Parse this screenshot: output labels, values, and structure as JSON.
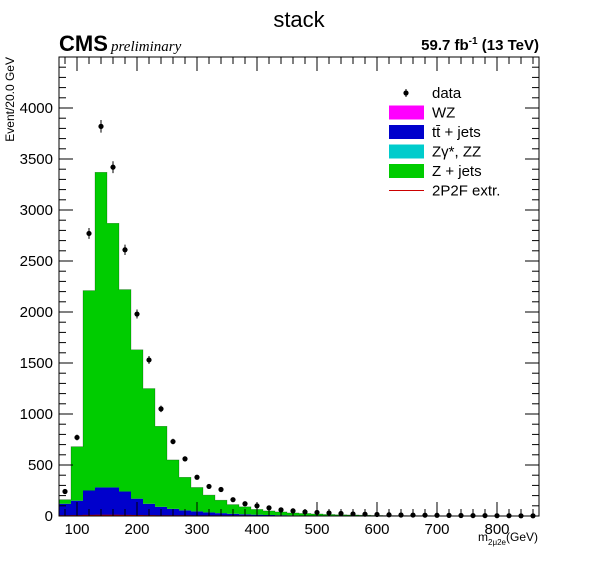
{
  "chart_data": {
    "type": "stacked-histogram",
    "title": "stack",
    "experiment": "CMS",
    "status": "preliminary",
    "lumi_text": "59.7 fb",
    "lumi_exp": "-1",
    "energy_text": "(13 TeV)",
    "ylabel": "Event/20.0 GeV",
    "xlabel_main": "m",
    "xlabel_sub": "2μ2e",
    "xlabel_unit": "(GeV)",
    "xlim": [
      70,
      870
    ],
    "ylim": [
      0,
      4500
    ],
    "bin_width": 20,
    "x_ticks": [
      100,
      200,
      300,
      400,
      500,
      600,
      700,
      800
    ],
    "y_ticks": [
      0,
      500,
      1000,
      1500,
      2000,
      2500,
      3000,
      3500,
      4000
    ],
    "legend_position": "top-right",
    "legend": [
      {
        "label": "data",
        "style": "marker",
        "color": "#000000"
      },
      {
        "label": "WZ",
        "style": "fill",
        "color": "#ff00ff"
      },
      {
        "label": "tt̄ + jets",
        "style": "fill",
        "color": "#0000cc"
      },
      {
        "label": "Zγ*, ZZ",
        "style": "fill",
        "color": "#00cccc"
      },
      {
        "label": "Z + jets",
        "style": "fill",
        "color": "#00cc00"
      },
      {
        "label": "2P2F extr.",
        "style": "line",
        "color": "#cc0000"
      }
    ],
    "bin_edges_low": [
      70,
      90,
      110,
      130,
      150,
      170,
      190,
      210,
      230,
      250,
      270,
      290,
      310,
      330,
      350,
      370,
      390,
      410,
      430,
      450,
      470,
      490,
      510,
      530,
      550,
      570,
      590,
      610,
      630,
      650,
      670,
      690,
      710,
      730,
      750,
      770,
      790,
      810,
      830,
      850
    ],
    "series": [
      {
        "name": "tt̄ + jets",
        "color": "#0000cc",
        "values": [
          120,
          150,
          250,
          280,
          280,
          240,
          170,
          120,
          90,
          70,
          55,
          45,
          35,
          28,
          22,
          17,
          13,
          10,
          8,
          6,
          5,
          4,
          3,
          3,
          2,
          2,
          1,
          1,
          1,
          1,
          1,
          0,
          0,
          0,
          0,
          0,
          0,
          0,
          0,
          0
        ]
      },
      {
        "name": "Zγ*, ZZ",
        "color": "#00cccc",
        "values": [
          0,
          0,
          0,
          0,
          0,
          0,
          0,
          0,
          0,
          0,
          0,
          0,
          0,
          0,
          0,
          0,
          0,
          0,
          0,
          0,
          0,
          0,
          0,
          0,
          0,
          0,
          0,
          0,
          0,
          0,
          0,
          0,
          0,
          0,
          0,
          0,
          0,
          0,
          0,
          0
        ]
      },
      {
        "name": "WZ",
        "color": "#ff00ff",
        "values": [
          0,
          0,
          0,
          0,
          0,
          0,
          0,
          0,
          0,
          0,
          0,
          0,
          0,
          0,
          0,
          0,
          0,
          0,
          0,
          0,
          0,
          0,
          0,
          0,
          0,
          0,
          0,
          0,
          0,
          0,
          0,
          0,
          0,
          0,
          0,
          0,
          0,
          0,
          0,
          0
        ]
      },
      {
        "name": "Z + jets",
        "color": "#00cc00",
        "values": [
          40,
          530,
          1960,
          3090,
          2590,
          1980,
          1460,
          1130,
          790,
          480,
          325,
          235,
          170,
          127,
          90,
          73,
          52,
          40,
          32,
          24,
          20,
          16,
          12,
          9,
          8,
          6,
          5,
          4,
          3,
          2,
          2,
          2,
          1,
          1,
          1,
          1,
          1,
          1,
          1,
          1
        ]
      }
    ],
    "data_points": {
      "name": "data",
      "x": [
        80,
        100,
        120,
        140,
        160,
        180,
        200,
        220,
        240,
        260,
        280,
        300,
        320,
        340,
        360,
        380,
        400,
        420,
        440,
        460,
        480,
        500,
        520,
        540,
        560,
        580,
        600,
        620,
        640,
        660,
        680,
        700,
        720,
        740,
        760,
        780,
        800,
        820,
        840,
        860
      ],
      "y": [
        240,
        770,
        2770,
        3820,
        3420,
        2610,
        1980,
        1530,
        1050,
        730,
        560,
        380,
        290,
        260,
        160,
        120,
        100,
        80,
        60,
        50,
        40,
        35,
        30,
        25,
        20,
        18,
        15,
        12,
        10,
        9,
        8,
        7,
        6,
        5,
        4,
        4,
        3,
        3,
        2,
        2
      ],
      "err": [
        16,
        28,
        53,
        62,
        58,
        51,
        44,
        39,
        32,
        27,
        24,
        19,
        17,
        16,
        13,
        11,
        10,
        9,
        8,
        7,
        6,
        6,
        5,
        5,
        4,
        4,
        4,
        3,
        3,
        3,
        3,
        3,
        2,
        2,
        2,
        2,
        2,
        2,
        1,
        1
      ]
    },
    "extrapolation": {
      "name": "2P2F extr.",
      "color": "#cc0000",
      "values": [
        2,
        4,
        6,
        7,
        7,
        6,
        5,
        4,
        3,
        2,
        2,
        1,
        1,
        1,
        1,
        1,
        0,
        0,
        0,
        0,
        0,
        0,
        0,
        0,
        0,
        0,
        0,
        0,
        0,
        0,
        0,
        0,
        0,
        0,
        0,
        0,
        0,
        0,
        0,
        0
      ]
    }
  }
}
